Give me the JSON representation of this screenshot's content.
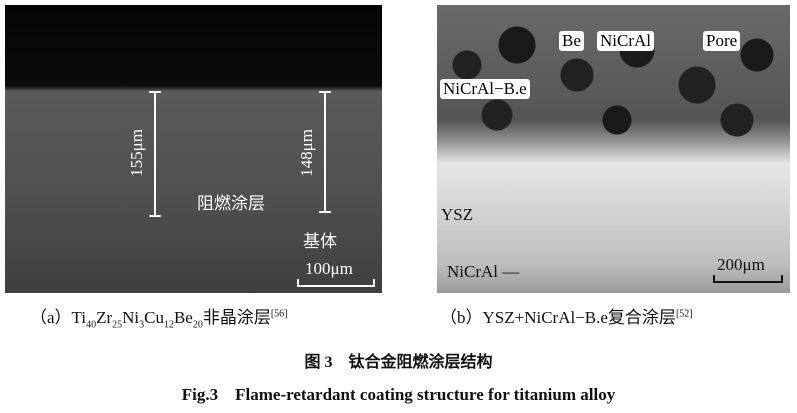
{
  "panel_a": {
    "thickness_left": "155μm",
    "thickness_right": "148μm",
    "coating_label": "阻燃涂层",
    "substrate_label": "基体",
    "scale_bar": "100μm",
    "caption": {
      "prefix": "（a）",
      "ti": "Ti",
      "ti_n": "40",
      "zr": "Zr",
      "zr_n": "25",
      "ni": "Ni",
      "ni_n": "3",
      "cu": "Cu",
      "cu_n": "12",
      "be": "Be",
      "be_n": "20",
      "suffix": "非晶涂层",
      "ref": "[56]"
    }
  },
  "panel_b": {
    "labels": {
      "be": "Be",
      "nicral": "NiCrAl",
      "pore": "Pore",
      "nicral_be": "NiCrAl−B.e",
      "ysz": "YSZ",
      "nicral_bottom": "NiCrAl —"
    },
    "scale_bar": "200μm",
    "caption": {
      "text": "（b）YSZ+NiCrAl−B.e复合涂层",
      "ref": "[52]"
    }
  },
  "figure": {
    "title_cn": "图 3　钛合金阻燃涂层结构",
    "title_en": "Fig.3　Flame-retardant coating structure for titanium alloy"
  }
}
